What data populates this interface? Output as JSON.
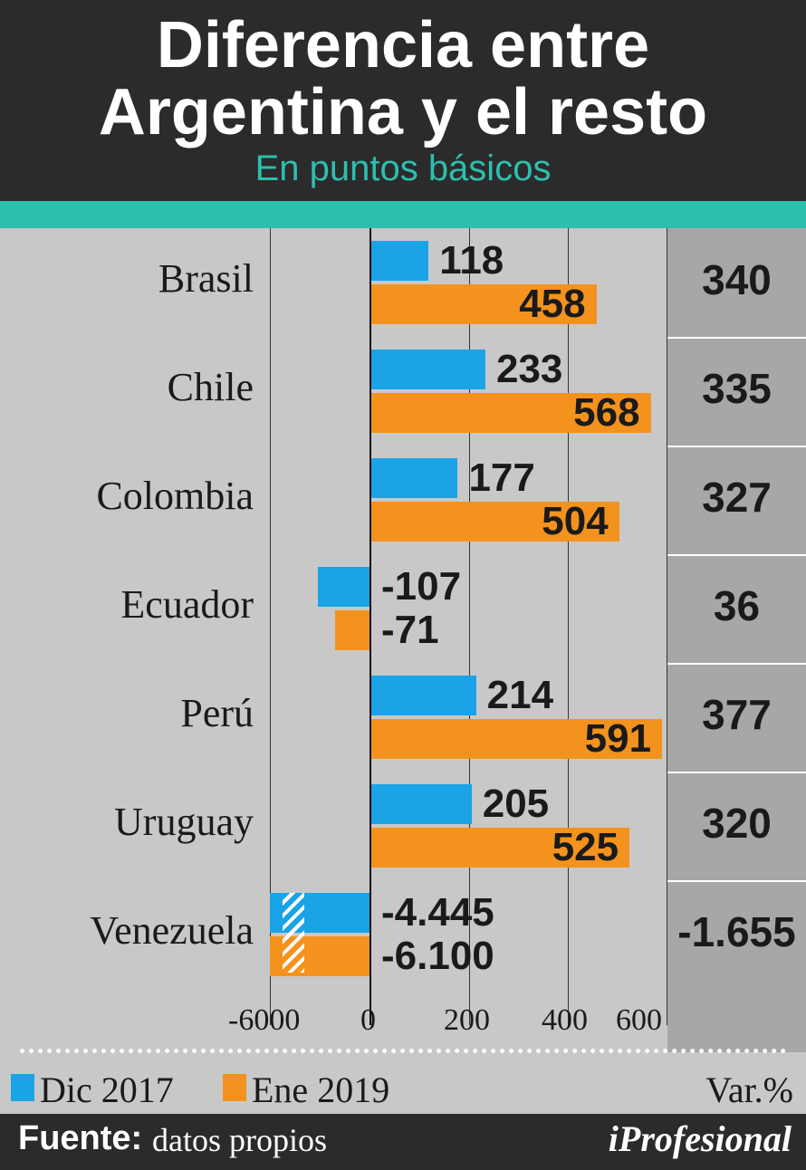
{
  "header": {
    "title_line1": "Diferencia entre",
    "title_line2": "Argentina y el resto",
    "subtitle": "En puntos básicos"
  },
  "chart_data": {
    "type": "bar",
    "orientation": "horizontal",
    "categories": [
      "Brasil",
      "Chile",
      "Colombia",
      "Ecuador",
      "Perú",
      "Uruguay",
      "Venezuela"
    ],
    "series": [
      {
        "name": "Dic 2017",
        "color": "#1aa3e6",
        "values": [
          118,
          233,
          177,
          -107,
          214,
          205,
          -4445
        ],
        "labels": [
          "118",
          "233",
          "177",
          "-107",
          "214",
          "205",
          "-4.445"
        ]
      },
      {
        "name": "Ene 2019",
        "color": "#f4921e",
        "values": [
          458,
          568,
          504,
          -71,
          591,
          525,
          -6100
        ],
        "labels": [
          "458",
          "568",
          "504",
          "-71",
          "591",
          "525",
          "-6.100"
        ]
      }
    ],
    "variation": {
      "header": "Var.%",
      "values": [
        "340",
        "335",
        "327",
        "36",
        "377",
        "320",
        "-1.655"
      ]
    },
    "x_ticks": [
      "-6000",
      "0",
      "200",
      "400",
      "600"
    ],
    "axis_break": true,
    "grid": true,
    "legend_position": "bottom-left"
  },
  "footer": {
    "source_label": "Fuente:",
    "source_text": "datos propios",
    "brand": "iProfesional"
  }
}
